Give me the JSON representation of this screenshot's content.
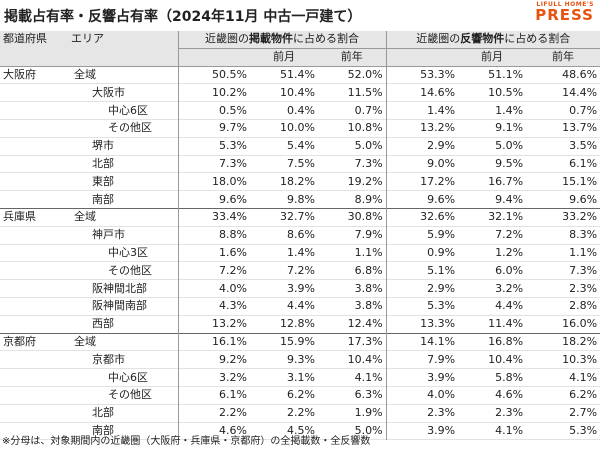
{
  "header": {
    "title": "掲載占有率・反響占有率（2024年11月 中古一戸建て）",
    "logo_top": "LIFULL HOME'S",
    "logo_bottom": "PRESS"
  },
  "table": {
    "head": {
      "prefecture": "都道府県",
      "area": "エリア",
      "group_listing": [
        "近畿圏の",
        "掲載物件",
        "に占める割合"
      ],
      "group_inquiry": [
        "近畿圏の",
        "反響物件",
        "に占める割合"
      ],
      "sub": [
        "前月",
        "前年",
        "前月",
        "前年"
      ]
    },
    "rows": [
      [
        "大阪府",
        "全域",
        "50.5%",
        "51.4%",
        "52.0%",
        "53.3%",
        "51.1%",
        "48.6%"
      ],
      [
        "",
        "大阪市",
        "10.2%",
        "10.4%",
        "11.5%",
        "14.6%",
        "10.5%",
        "14.4%"
      ],
      [
        "",
        "中心6区",
        "0.5%",
        "0.4%",
        "0.7%",
        "1.4%",
        "1.4%",
        "0.7%"
      ],
      [
        "",
        "その他区",
        "9.7%",
        "10.0%",
        "10.8%",
        "13.2%",
        "9.1%",
        "13.7%"
      ],
      [
        "",
        "堺市",
        "5.3%",
        "5.4%",
        "5.0%",
        "2.9%",
        "5.0%",
        "3.5%"
      ],
      [
        "",
        "北部",
        "7.3%",
        "7.5%",
        "7.3%",
        "9.0%",
        "9.5%",
        "6.1%"
      ],
      [
        "",
        "東部",
        "18.0%",
        "18.2%",
        "19.2%",
        "17.2%",
        "16.7%",
        "15.1%"
      ],
      [
        "",
        "南部",
        "9.6%",
        "9.8%",
        "8.9%",
        "9.6%",
        "9.4%",
        "9.6%"
      ],
      [
        "兵庫県",
        "全域",
        "33.4%",
        "32.7%",
        "30.8%",
        "32.6%",
        "32.1%",
        "33.2%"
      ],
      [
        "",
        "神戸市",
        "8.8%",
        "8.6%",
        "7.9%",
        "5.9%",
        "7.2%",
        "8.3%"
      ],
      [
        "",
        "中心3区",
        "1.6%",
        "1.4%",
        "1.1%",
        "0.9%",
        "1.2%",
        "1.1%"
      ],
      [
        "",
        "その他区",
        "7.2%",
        "7.2%",
        "6.8%",
        "5.1%",
        "6.0%",
        "7.3%"
      ],
      [
        "",
        "阪神間北部",
        "4.0%",
        "3.9%",
        "3.8%",
        "2.9%",
        "3.2%",
        "2.3%"
      ],
      [
        "",
        "阪神間南部",
        "4.3%",
        "4.4%",
        "3.8%",
        "5.3%",
        "4.4%",
        "2.8%"
      ],
      [
        "",
        "西部",
        "13.2%",
        "12.8%",
        "12.4%",
        "13.3%",
        "11.4%",
        "16.0%"
      ],
      [
        "京都府",
        "全域",
        "16.1%",
        "15.9%",
        "17.3%",
        "14.1%",
        "16.8%",
        "18.2%"
      ],
      [
        "",
        "京都市",
        "9.2%",
        "9.3%",
        "10.4%",
        "7.9%",
        "10.4%",
        "10.3%"
      ],
      [
        "",
        "中心6区",
        "3.2%",
        "3.1%",
        "4.1%",
        "3.9%",
        "5.8%",
        "4.1%"
      ],
      [
        "",
        "その他区",
        "6.1%",
        "6.2%",
        "6.3%",
        "4.0%",
        "4.6%",
        "6.2%"
      ],
      [
        "",
        "北部",
        "2.2%",
        "2.2%",
        "1.9%",
        "2.3%",
        "2.3%",
        "2.7%"
      ],
      [
        "",
        "南部",
        "4.6%",
        "4.5%",
        "5.0%",
        "3.9%",
        "4.1%",
        "5.3%"
      ]
    ]
  },
  "footnote": "※分母は、対象期間内の近畿圏（大阪府・兵庫県・京都府）の全掲載数・全反響数"
}
